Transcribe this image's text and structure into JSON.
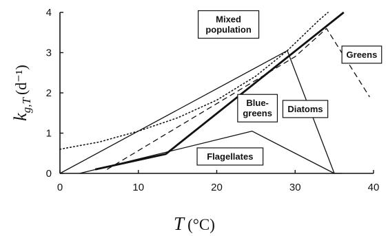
{
  "chart_data": {
    "type": "line",
    "xlabel_symbol": "T",
    "xlabel_unit": "(°C)",
    "ylabel_symbol": "k",
    "ylabel_subscript": "g,T",
    "ylabel_unit": "(d⁻¹)",
    "xlim": [
      0,
      40
    ],
    "ylim": [
      0,
      4
    ],
    "x_ticks": [
      0,
      10,
      20,
      30,
      40
    ],
    "y_ticks": [
      0,
      1,
      2,
      3,
      4
    ],
    "grid": false,
    "series": [
      {
        "name": "Mixed population",
        "style": "dotted",
        "weight": "thin",
        "points": [
          [
            0,
            0.6
          ],
          [
            5,
            0.78
          ],
          [
            10,
            1.05
          ],
          [
            15,
            1.38
          ],
          [
            20,
            1.82
          ],
          [
            25,
            2.42
          ],
          [
            29,
            3.05
          ],
          [
            33,
            3.8
          ],
          [
            34.2,
            4.0
          ]
        ]
      },
      {
        "name": "Greens",
        "style": "dashed",
        "weight": "thin",
        "points": [
          [
            6,
            0.1
          ],
          [
            30,
            2.9
          ],
          [
            34,
            3.6
          ],
          [
            39.5,
            1.9
          ]
        ]
      },
      {
        "name": "Diatoms",
        "style": "solid",
        "weight": "thin",
        "points": [
          [
            0,
            0.0
          ],
          [
            29,
            3.05
          ],
          [
            35,
            0.0
          ]
        ]
      },
      {
        "name": "Blue-greens",
        "style": "solid",
        "weight": "thick",
        "points": [
          [
            4.5,
            0.1
          ],
          [
            13.5,
            0.48
          ],
          [
            36.2,
            4.0
          ]
        ]
      },
      {
        "name": "Flagellates",
        "style": "solid",
        "weight": "thin",
        "points": [
          [
            2.5,
            0.0
          ],
          [
            24.5,
            1.05
          ],
          [
            35,
            0.0
          ],
          [
            36,
            0.0
          ]
        ]
      }
    ],
    "annotations": [
      {
        "text": "Mixed\npopulation",
        "series": "Mixed population"
      },
      {
        "text": "Greens",
        "series": "Greens"
      },
      {
        "text": "Blue-\ngreens",
        "series": "Blue-greens"
      },
      {
        "text": "Diatoms",
        "series": "Diatoms"
      },
      {
        "text": "Flagellates",
        "series": "Flagellates"
      }
    ]
  }
}
